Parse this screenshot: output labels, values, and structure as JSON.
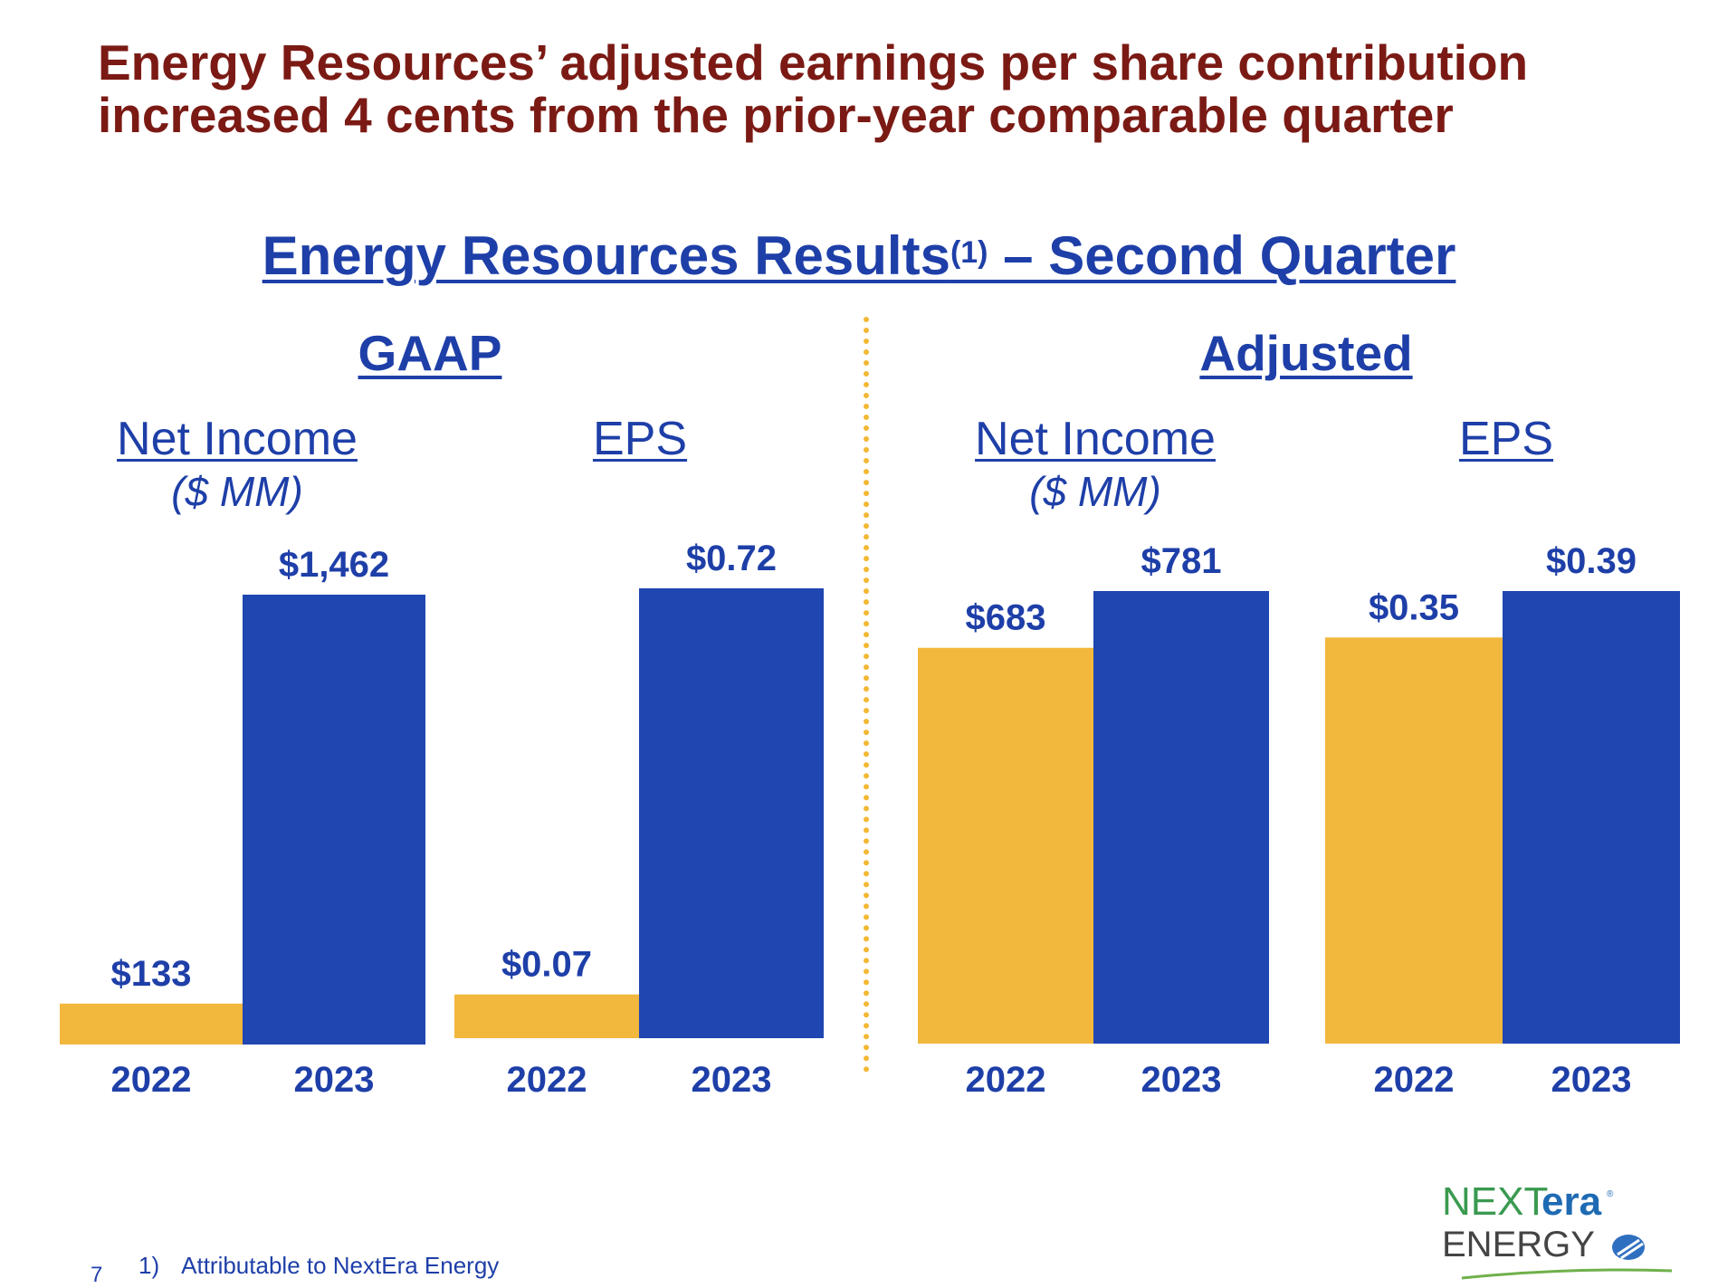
{
  "headline": {
    "line1": "Energy Resources’ adjusted earnings per share contribution",
    "line2": "increased 4 cents from the prior-year comparable quarter"
  },
  "section_title": {
    "main": "Energy Resources Results",
    "sup": "(1)",
    "suffix": " – Second Quarter"
  },
  "groups": {
    "gaap": "GAAP",
    "adjusted": "Adjusted"
  },
  "colors": {
    "year2022": "#f2b73d",
    "year2023": "#1f46b1",
    "text_blue": "#1e3fa8",
    "headline_red": "#7b1a14",
    "divider": "#f2b834"
  },
  "chart_data": [
    {
      "type": "bar",
      "group": "GAAP",
      "title": "Net Income",
      "unit": "($ MM)",
      "categories": [
        "2022",
        "2023"
      ],
      "values": [
        133,
        1462
      ],
      "value_labels": [
        "$133",
        "$1,462"
      ],
      "ylim": [
        0,
        1462
      ]
    },
    {
      "type": "bar",
      "group": "GAAP",
      "title": "EPS",
      "unit": "",
      "categories": [
        "2022",
        "2023"
      ],
      "values": [
        0.07,
        0.72
      ],
      "value_labels": [
        "$0.07",
        "$0.72"
      ],
      "ylim": [
        0,
        0.72
      ]
    },
    {
      "type": "bar",
      "group": "Adjusted",
      "title": "Net Income",
      "unit": "($ MM)",
      "categories": [
        "2022",
        "2023"
      ],
      "values": [
        683,
        781
      ],
      "value_labels": [
        "$683",
        "$781"
      ],
      "ylim": [
        0,
        781
      ]
    },
    {
      "type": "bar",
      "group": "Adjusted",
      "title": "EPS",
      "unit": "",
      "categories": [
        "2022",
        "2023"
      ],
      "values": [
        0.35,
        0.39
      ],
      "value_labels": [
        "$0.35",
        "$0.39"
      ],
      "ylim": [
        0,
        0.39
      ]
    }
  ],
  "footnote": {
    "number": "1)",
    "text": "Attributable to NextEra Energy"
  },
  "page_number": "7",
  "logo": {
    "next": "NEXT",
    "era": "era",
    "energy": "ENERGY",
    "reg": "®"
  }
}
